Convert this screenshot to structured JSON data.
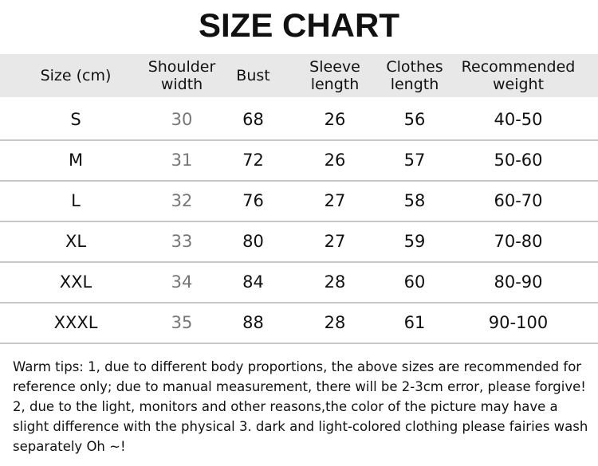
{
  "title": "SIZE CHART",
  "headers": [
    "Size (cm)",
    "Shoulder width",
    "Bust",
    "Sleeve length",
    "Clothes length",
    "Recommended weight"
  ],
  "rows": [
    [
      "S",
      "30",
      "68",
      "26",
      "56",
      "40-50"
    ],
    [
      "M",
      "31",
      "72",
      "26",
      "57",
      "50-60"
    ],
    [
      "L",
      "32",
      "76",
      "27",
      "58",
      "60-70"
    ],
    [
      "XL",
      "33",
      "80",
      "27",
      "59",
      "70-80"
    ],
    [
      "XXL",
      "34",
      "84",
      "28",
      "60",
      "80-90"
    ],
    [
      "XXXL",
      "35",
      "88",
      "28",
      "61",
      "90-100"
    ]
  ],
  "tips": "Warm tips: 1, due to different body proportions, the above sizes are recommended for reference only; due to manual measurement, there will be 2-3cm error, please forgive! 2, due to the light, monitors and other reasons,the color of the picture may have a slight difference with the physical 3. dark and light-colored clothing please fairies wash separately Oh ~!"
}
